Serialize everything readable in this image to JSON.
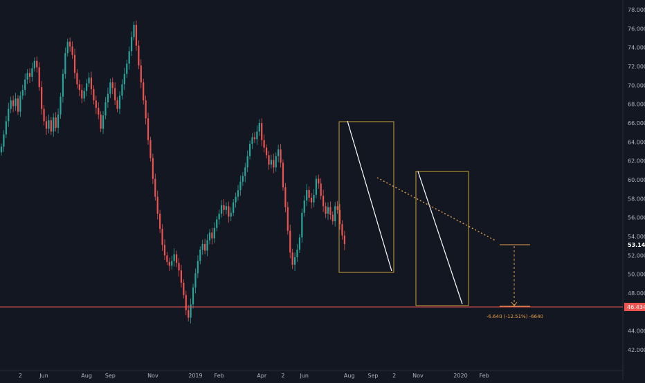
{
  "chart_data": {
    "type": "candlestick",
    "title": "",
    "xlabel": "",
    "ylabel": "",
    "ylim": [
      41,
      79
    ],
    "grid": false,
    "colors": {
      "background": "#131722",
      "up": "#26a69a",
      "down": "#ef5350",
      "price_tag_bg": "#ffffff",
      "price_tag_text": "#131722",
      "support_line": "#ef5350",
      "annotation_box": "#c8a03a",
      "trend_line": "#ffffff",
      "dotted_trend": "#e4a04a",
      "measure": "#e4a04a",
      "axis_text": "#b2b5be"
    },
    "y_ticks": [
      "78.000",
      "76.000",
      "74.000",
      "72.000",
      "70.000",
      "68.000",
      "66.000",
      "64.000",
      "62.000",
      "60.000",
      "58.000",
      "56.000",
      "54.000",
      "52.000",
      "50.000",
      "48.000",
      "44.000",
      "42.000"
    ],
    "y_tick_values": [
      78,
      76,
      74,
      72,
      70,
      68,
      66,
      64,
      62,
      60,
      58,
      56,
      54,
      52,
      50,
      48,
      44,
      42
    ],
    "x_ticks": [
      {
        "label": "2",
        "index": 8
      },
      {
        "label": "Jun",
        "index": 18
      },
      {
        "label": "Aug",
        "index": 36
      },
      {
        "label": "Sep",
        "index": 46
      },
      {
        "label": "Nov",
        "index": 64
      },
      {
        "label": "2019",
        "index": 82
      },
      {
        "label": "Feb",
        "index": 92
      },
      {
        "label": "Apr",
        "index": 110
      },
      {
        "label": "2",
        "index": 119
      },
      {
        "label": "Jun",
        "index": 128
      },
      {
        "label": "Aug",
        "index": 147
      },
      {
        "label": "Sep",
        "index": 157
      },
      {
        "label": "2",
        "index": 166
      },
      {
        "label": "Nov",
        "index": 176
      },
      {
        "label": "2020",
        "index": 194
      },
      {
        "label": "Feb",
        "index": 204
      }
    ],
    "closes": [
      63.5,
      64.8,
      66.2,
      67.5,
      68.4,
      67.8,
      68.6,
      67.2,
      68.9,
      69.5,
      70.6,
      71.3,
      70.9,
      71.8,
      72.6,
      71.9,
      69.8,
      67.5,
      66.2,
      65.4,
      66.3,
      65.1,
      66.6,
      65.5,
      66.9,
      68.8,
      71.2,
      73.4,
      74.6,
      74.1,
      73.2,
      71.3,
      70.1,
      69.5,
      68.6,
      69.4,
      70.2,
      70.8,
      69.6,
      68.4,
      67.6,
      66.9,
      65.4,
      66.8,
      68.2,
      69.1,
      70.3,
      69.7,
      68.4,
      67.5,
      68.9,
      70.1,
      71.2,
      72.3,
      73.6,
      75.1,
      76.4,
      74.2,
      72.1,
      70.3,
      68.4,
      66.5,
      64.2,
      62.3,
      60.1,
      58.2,
      56.4,
      54.8,
      53.1,
      52.0,
      51.3,
      50.9,
      51.4,
      52.1,
      51.2,
      50.4,
      49.1,
      47.8,
      46.2,
      45.4,
      46.8,
      48.6,
      50.1,
      51.4,
      52.6,
      53.2,
      52.5,
      53.6,
      54.4,
      53.8,
      54.9,
      55.8,
      56.4,
      57.3,
      56.8,
      57.2,
      56.1,
      56.5,
      57.6,
      58.2,
      58.9,
      59.8,
      60.4,
      61.3,
      62.5,
      63.8,
      64.5,
      64.3,
      65.1,
      66.0,
      64.2,
      63.4,
      62.6,
      61.6,
      62.1,
      61.3,
      62.5,
      63.2,
      61.8,
      59.2,
      57.1,
      54.6,
      52.3,
      51.0,
      51.8,
      52.6,
      53.9,
      56.5,
      57.8,
      58.9,
      58.1,
      57.6,
      58.4,
      60.1,
      59.6,
      58.3,
      57.2,
      56.4,
      57.1,
      56.3,
      55.6,
      57.2,
      56.8,
      55.3,
      54.1,
      53.2
    ]
  }
}
